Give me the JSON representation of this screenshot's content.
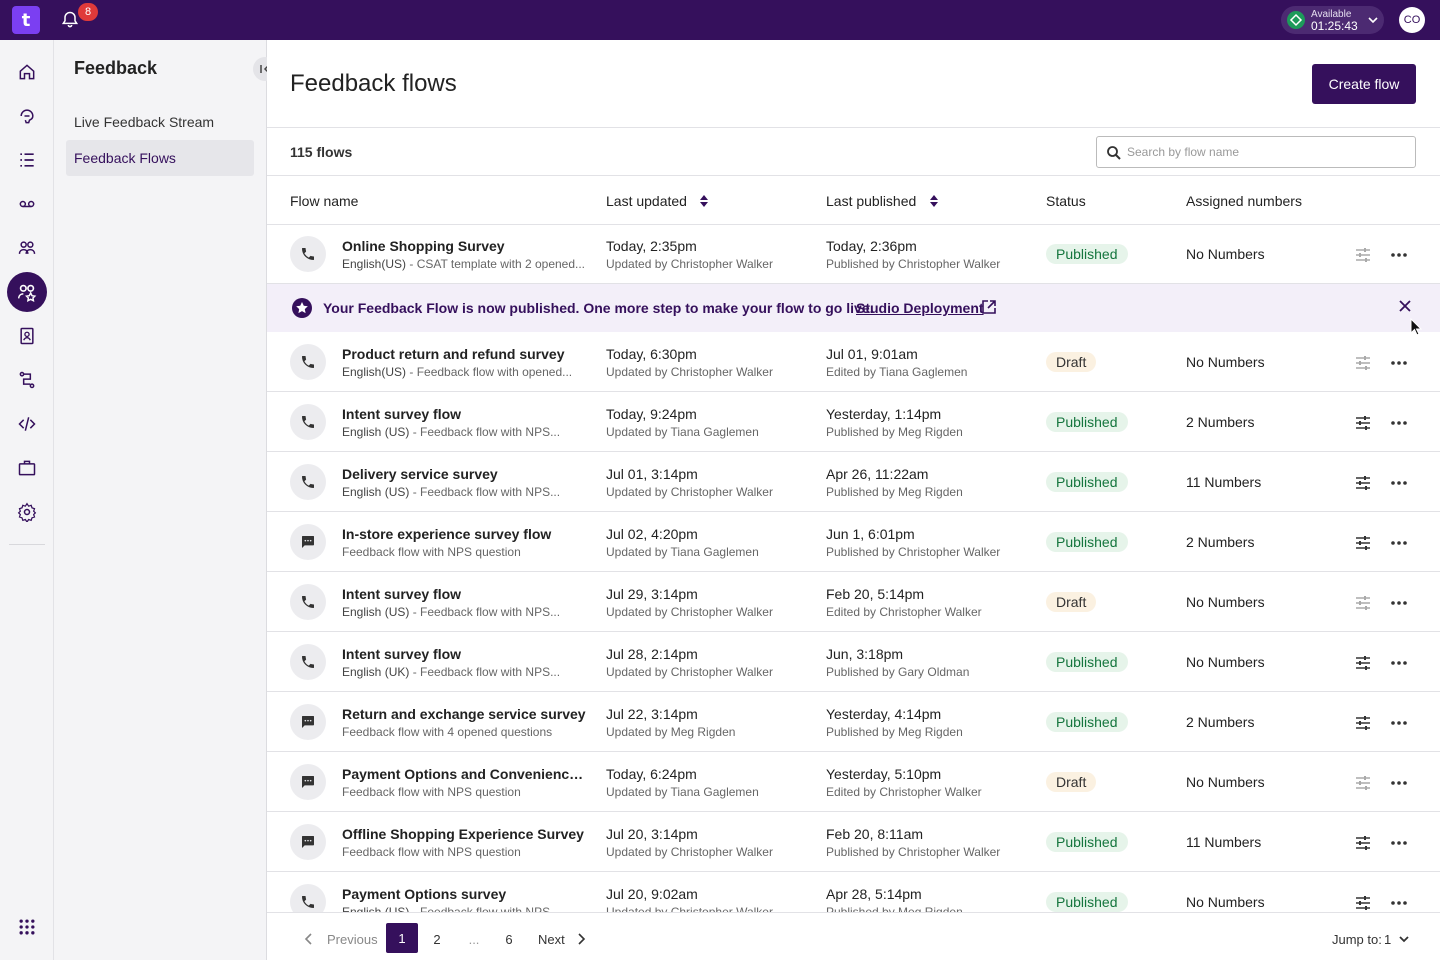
{
  "topbar": {
    "logo_letter": "t",
    "notification_count": "8",
    "availability_label": "Available",
    "availability_timer": "01:25:43",
    "avatar_initials": "CO",
    "accent": "#35105c"
  },
  "subnav": {
    "title": "Feedback",
    "items": [
      {
        "label": "Live Feedback Stream"
      },
      {
        "label": "Feedback Flows"
      }
    ]
  },
  "main": {
    "title": "Feedback flows",
    "create_label": "Create flow",
    "count_label": "115 flows",
    "search_placeholder": "Search by flow name",
    "columns": {
      "flow_name": "Flow name",
      "last_updated": "Last updated",
      "last_published": "Last published",
      "status": "Status",
      "assigned": "Assigned numbers"
    },
    "banner": {
      "text": "Your Feedback Flow is now published. One more step to make your flow to go live.",
      "link": "Studio Deployment"
    },
    "rows": [
      {
        "icon": "phone",
        "name": "Online Shopping Survey",
        "lang": "English(US)",
        "desc": " - CSAT template with 2 opened...",
        "upd": "Today, 2:35pm",
        "upd_by": "Updated by Christopher Walker",
        "pub": "Today, 2:36pm",
        "pub_by": "Published by Christopher Walker",
        "status": "Published",
        "nums": "No Numbers"
      },
      {
        "icon": "phone",
        "name": "Product return and refund survey",
        "lang": "English(US)",
        "desc": " - Feedback flow with opened...",
        "upd": "Today, 6:30pm",
        "upd_by": "Updated by Christopher Walker",
        "pub": "Jul 01, 9:01am",
        "pub_by": "Edited by Tiana Gaglemen",
        "status": "Draft",
        "nums": "No Numbers"
      },
      {
        "icon": "phone",
        "name": "Intent survey flow",
        "lang": "English (US)",
        "desc": " - Feedback flow with NPS...",
        "upd": "Today, 9:24pm",
        "upd_by": "Updated by Tiana Gaglemen",
        "pub": "Yesterday, 1:14pm",
        "pub_by": "Published by Meg Rigden",
        "status": "Published",
        "nums": "2 Numbers"
      },
      {
        "icon": "phone",
        "name": "Delivery service survey",
        "lang": "English (US)",
        "desc": " - Feedback flow with NPS...",
        "upd": "Jul 01, 3:14pm",
        "upd_by": "Updated by Christopher Walker",
        "pub": "Apr 26, 11:22am",
        "pub_by": "Published by Meg Rigden",
        "status": "Published",
        "nums": "11 Numbers"
      },
      {
        "icon": "chat",
        "name": "In-store experience survey flow",
        "lang": "",
        "desc": "Feedback flow with NPS question",
        "upd": "Jul 02, 4:20pm",
        "upd_by": "Updated by Tiana Gaglemen",
        "pub": "Jun 1, 6:01pm",
        "pub_by": "Published by Christopher Walker",
        "status": "Published",
        "nums": "2 Numbers"
      },
      {
        "icon": "phone",
        "name": "Intent survey flow",
        "lang": "English (US)",
        "desc": " - Feedback flow with NPS...",
        "upd": "Jul 29, 3:14pm",
        "upd_by": "Updated by Christopher Walker",
        "pub": "Feb 20, 5:14pm",
        "pub_by": "Edited by Christopher Walker",
        "status": "Draft",
        "nums": "No Numbers"
      },
      {
        "icon": "phone",
        "name": "Intent survey flow",
        "lang": "English (UK)",
        "desc": " - Feedback flow with NPS...",
        "upd": "Jul 28, 2:14pm",
        "upd_by": "Updated by Christopher Walker",
        "pub": "Jun, 3:18pm",
        "pub_by": "Published by Gary Oldman",
        "status": "Published",
        "nums": "No Numbers"
      },
      {
        "icon": "chat",
        "name": "Return and exchange service survey",
        "lang": "",
        "desc": "Feedback flow with 4 opened questions",
        "upd": "Jul 22, 3:14pm",
        "upd_by": "Updated by Meg Rigden",
        "pub": "Yesterday, 4:14pm",
        "pub_by": "Published by Meg Rigden",
        "status": "Published",
        "nums": "2 Numbers"
      },
      {
        "icon": "chat",
        "name": "Payment Options and Convenience S...",
        "lang": "",
        "desc": "Feedback flow with NPS question",
        "upd": "Today, 6:24pm",
        "upd_by": "Updated by Tiana Gaglemen",
        "pub": "Yesterday, 5:10pm",
        "pub_by": "Edited by Christopher Walker",
        "status": "Draft",
        "nums": "No Numbers"
      },
      {
        "icon": "chat",
        "name": "Offline Shopping Experience Survey",
        "lang": "",
        "desc": "Feedback flow with NPS question",
        "upd": "Jul 20, 3:14pm",
        "upd_by": "Updated by Christopher Walker",
        "pub": "Feb 20, 8:11am",
        "pub_by": "Published by Christopher Walker",
        "status": "Published",
        "nums": "11 Numbers"
      },
      {
        "icon": "phone",
        "name": "Payment Options survey",
        "lang": "English (US)",
        "desc": " - Feedback flow with NPS...",
        "upd": "Jul 20, 9:02am",
        "upd_by": "Updated by Christopher Walker",
        "pub": "Apr 28, 5:14pm",
        "pub_by": "Published by Meg Rigden",
        "status": "Published",
        "nums": "No Numbers"
      }
    ],
    "pagination": {
      "previous": "Previous",
      "pages": [
        "1",
        "2",
        "...",
        "6"
      ],
      "next": "Next",
      "jump_label": "Jump to:",
      "jump_value": "1"
    }
  }
}
